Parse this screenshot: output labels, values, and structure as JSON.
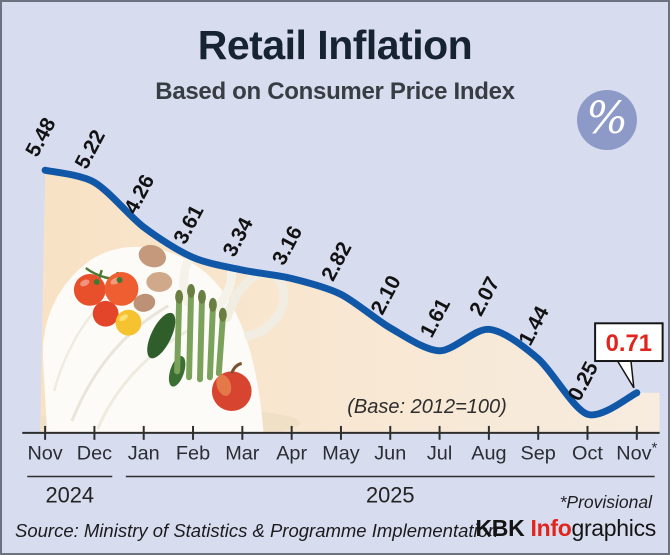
{
  "header": {
    "title": "Retail Inflation",
    "subtitle": "Based on Consumer Price Index",
    "percent_symbol": "%"
  },
  "chart_data": {
    "type": "line",
    "title": "Retail Inflation",
    "subtitle": "Based on Consumer Price Index",
    "categories": [
      "Nov",
      "Dec",
      "Jan",
      "Feb",
      "Mar",
      "Apr",
      "May",
      "Jun",
      "Jul",
      "Aug",
      "Sep",
      "Oct",
      "Nov*"
    ],
    "values": [
      5.48,
      5.22,
      4.26,
      3.61,
      3.34,
      3.16,
      2.82,
      2.1,
      1.61,
      2.07,
      1.44,
      0.25,
      0.71
    ],
    "labels": [
      "5.48",
      "5.22",
      "4.26",
      "3.61",
      "3.34",
      "3.16",
      "2.82",
      "2.10",
      "1.61",
      "2.07",
      "1.44",
      "0.25",
      "0.71"
    ],
    "unit": "percent",
    "ylim": [
      0,
      6
    ],
    "grid": false,
    "legend_position": "none",
    "year_groups": [
      {
        "label": "2024",
        "from": 0,
        "to": 1
      },
      {
        "label": "2025",
        "from": 2,
        "to": 12
      }
    ],
    "base_note": "(Base: 2012=100)",
    "highlight_index": 12,
    "line_color": "#1157a8",
    "area_color_left": "#f8e2c5",
    "area_color_right": "#f7ecdf",
    "axis_color": "#2e2e2e",
    "label_color": "#121212",
    "highlight_color": "#e0251c"
  },
  "footnote": "*Provisional",
  "source": "Source: Ministry of Statistics & Programme Implementation",
  "credit": {
    "kbk": "KBK ",
    "info": "Info",
    "graphics": "graphics"
  }
}
